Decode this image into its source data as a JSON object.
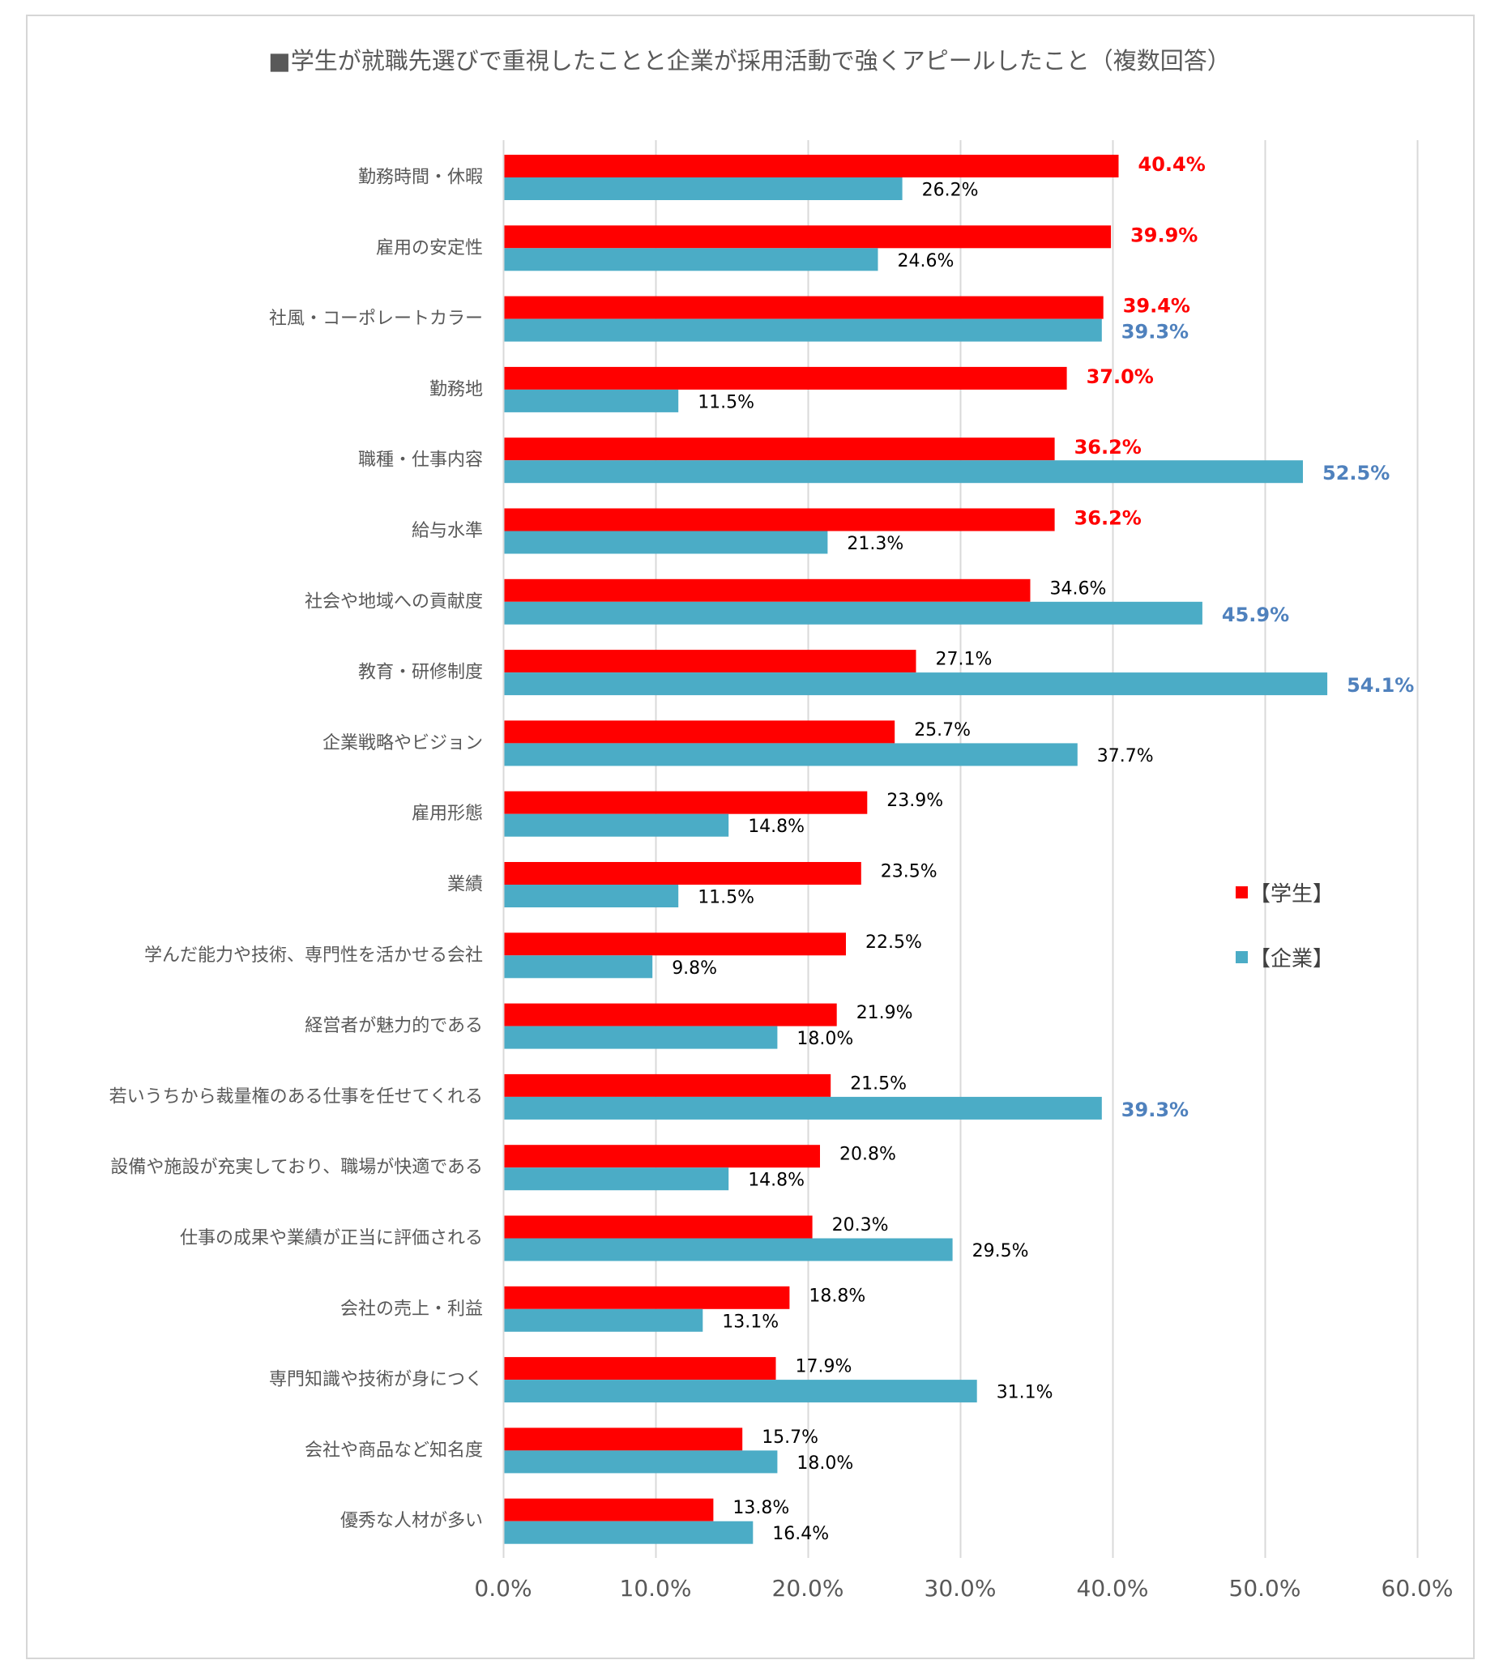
{
  "chart_data": {
    "type": "bar",
    "orientation": "horizontal",
    "title": "■学生が就職先選びで重視したことと企業が採用活動で強くアピールしたこと（複数回答）",
    "categories": [
      "勤務時間・休暇",
      "雇用の安定性",
      "社風・コーポレートカラー",
      "勤務地",
      "職種・仕事内容",
      "給与水準",
      "社会や地域への貢献度",
      "教育・研修制度",
      "企業戦略やビジョン",
      "雇用形態",
      "業績",
      "学んだ能力や技術、専門性を活かせる会社",
      "経営者が魅力的である",
      "若いうちから裁量権のある仕事を任せてくれる",
      "設備や施設が充実しており、職場が快適である",
      "仕事の成果や業績が正当に評価される",
      "会社の売上・利益",
      "専門知識や技術が身につく",
      "会社や商品など知名度",
      "優秀な人材が多い"
    ],
    "series": [
      {
        "name": "【学生】",
        "color": "#ff0000",
        "values": [
          40.4,
          39.9,
          39.4,
          37.0,
          36.2,
          36.2,
          34.6,
          27.1,
          25.7,
          23.9,
          23.5,
          22.5,
          21.9,
          21.5,
          20.8,
          20.3,
          18.8,
          17.9,
          15.7,
          13.8
        ],
        "labels": [
          "40.4%",
          "39.9%",
          "39.4%",
          "37.0%",
          "36.2%",
          "36.2%",
          "34.6%",
          "27.1%",
          "25.7%",
          "23.9%",
          "23.5%",
          "22.5%",
          "21.9%",
          "21.5%",
          "20.8%",
          "20.3%",
          "18.8%",
          "17.9%",
          "15.7%",
          "13.8%"
        ],
        "highlight": [
          true,
          true,
          true,
          true,
          true,
          true,
          false,
          false,
          false,
          false,
          false,
          false,
          false,
          false,
          false,
          false,
          false,
          false,
          false,
          false
        ],
        "highlight_color": "#ff0000"
      },
      {
        "name": "【企業】",
        "color": "#4bacc6",
        "values": [
          26.2,
          24.6,
          39.3,
          11.5,
          52.5,
          21.3,
          45.9,
          54.1,
          37.7,
          14.8,
          11.5,
          9.8,
          18.0,
          39.3,
          14.8,
          29.5,
          13.1,
          31.1,
          18.0,
          16.4
        ],
        "labels": [
          "26.2%",
          "24.6%",
          "39.3%",
          "11.5%",
          "52.5%",
          "21.3%",
          "45.9%",
          "54.1%",
          "37.7%",
          "14.8%",
          "11.5%",
          "9.8%",
          "18.0%",
          "39.3%",
          "14.8%",
          "29.5%",
          "13.1%",
          "31.1%",
          "18.0%",
          "16.4%"
        ],
        "highlight": [
          false,
          false,
          true,
          false,
          true,
          false,
          true,
          true,
          false,
          false,
          false,
          false,
          false,
          true,
          false,
          false,
          false,
          false,
          false,
          false
        ],
        "highlight_color": "#4f81bd"
      }
    ],
    "x_ticks": [
      "0.0%",
      "10.0%",
      "20.0%",
      "30.0%",
      "40.0%",
      "50.0%",
      "60.0%"
    ],
    "xlim": [
      0,
      60
    ],
    "grid": "vertical",
    "legend_position": "right",
    "colors": {
      "label_text": "#000000",
      "axis_text": "#595959",
      "gridline": "#d9d9d9"
    }
  }
}
